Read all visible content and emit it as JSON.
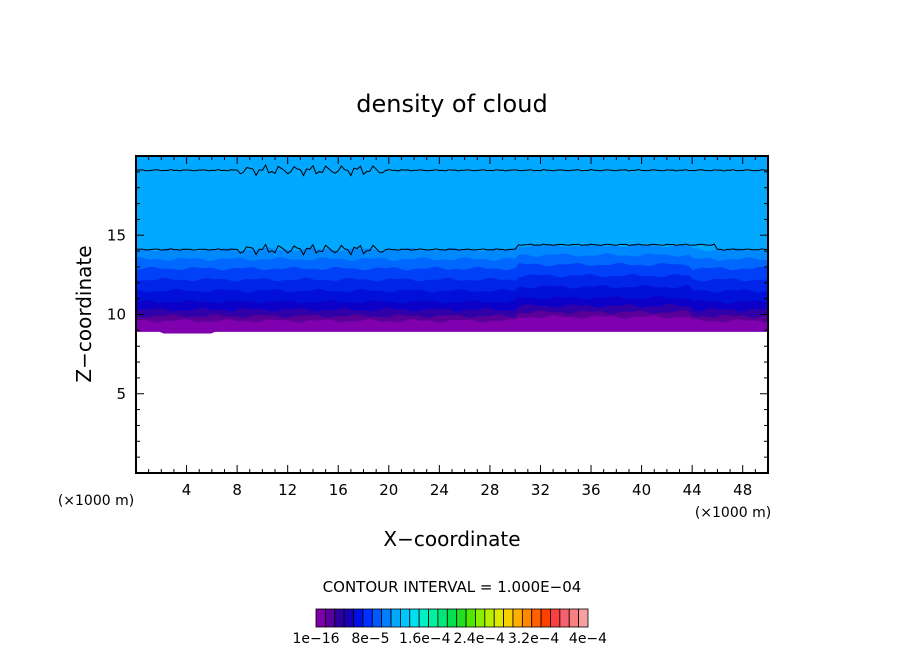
{
  "chart_data": {
    "type": "contour",
    "title": "density of cloud",
    "xlabel": "X−coordinate",
    "ylabel": "Z−coordinate",
    "x_unit": "(×1000 m)",
    "y_unit": "(×1000 m)",
    "xlim": [
      0,
      50
    ],
    "ylim": [
      0,
      20
    ],
    "x_ticks": [
      4,
      8,
      12,
      16,
      20,
      24,
      28,
      32,
      36,
      40,
      44,
      48
    ],
    "x_tick_labels": [
      "4",
      "8",
      "12",
      "16",
      "20",
      "24",
      "28",
      "32",
      "36",
      "40",
      "44",
      "48"
    ],
    "y_ticks": [
      5,
      10,
      15
    ],
    "y_tick_labels": [
      "5",
      "10",
      "15"
    ],
    "contour_interval_text": "CONTOUR INTERVAL = 1.000E−04",
    "contour_interval": 0.0001,
    "colorbar_labels": [
      "1e−16",
      "8e−5",
      "1.6e−4",
      "2.4e−4",
      "3.2e−4",
      "4e−4"
    ],
    "colorbar_colors": [
      "#7d00a8",
      "#5a009c",
      "#2c00a0",
      "#1600b8",
      "#0010e0",
      "#0030ff",
      "#0058ff",
      "#0080ff",
      "#00a8ff",
      "#00c8ff",
      "#00e0f0",
      "#00f0c8",
      "#00f0a0",
      "#00e878",
      "#00e050",
      "#20e020",
      "#50e800",
      "#88f000",
      "#b8f000",
      "#e0e800",
      "#f8d000",
      "#ffb000",
      "#ff8800",
      "#ff6000",
      "#ff4000",
      "#f84040",
      "#f86070",
      "#f88080",
      "#f8a0a0"
    ],
    "bands": [
      {
        "level_index": 0,
        "color": "#8000b0",
        "z_bottom": 8.9,
        "z_top": 9.6
      },
      {
        "level_index": 1,
        "color": "#5a0098",
        "z_bottom": 9.6,
        "z_top": 9.9
      },
      {
        "level_index": 2,
        "color": "#3000a8",
        "z_bottom": 9.9,
        "z_top": 10.3
      },
      {
        "level_index": 3,
        "color": "#0c00c8",
        "z_bottom": 10.3,
        "z_top": 10.8
      },
      {
        "level_index": 4,
        "color": "#0010d8",
        "z_bottom": 10.8,
        "z_top": 11.5
      },
      {
        "level_index": 5,
        "color": "#0024e8",
        "z_bottom": 11.5,
        "z_top": 12.2
      },
      {
        "level_index": 6,
        "color": "#0040f8",
        "z_bottom": 12.2,
        "z_top": 12.9
      },
      {
        "level_index": 7,
        "color": "#0068ff",
        "z_bottom": 12.9,
        "z_top": 13.5
      },
      {
        "level_index": 8,
        "color": "#0088ff",
        "z_bottom": 13.5,
        "z_top": 14.1
      },
      {
        "level_index": 9,
        "color": "#00a8ff",
        "z_bottom": 14.1,
        "z_top": 20
      }
    ],
    "contour_lines": [
      {
        "z": 14.1
      },
      {
        "z": 19.1
      }
    ]
  }
}
